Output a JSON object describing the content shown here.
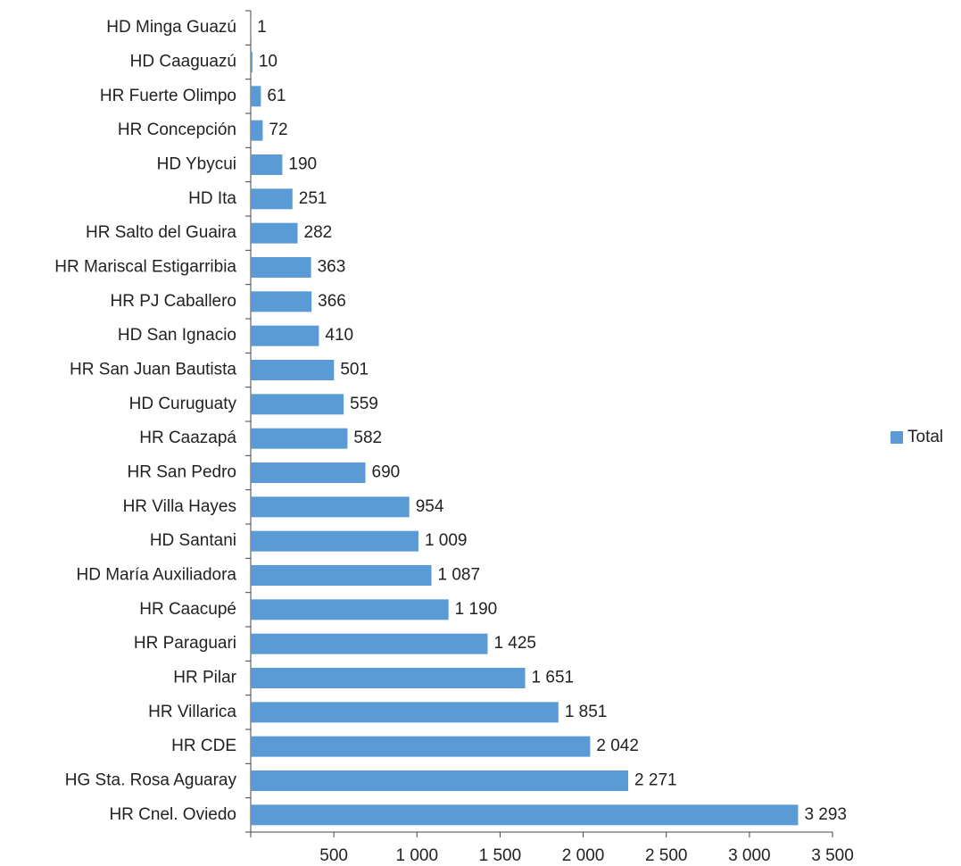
{
  "chart_data": {
    "type": "barh",
    "categories": [
      "HD Minga Guazú",
      "HD Caaguazú",
      "HR Fuerte Olimpo",
      "HR Concepción",
      "HD Ybycui",
      "HD Ita",
      "HR Salto del Guaira",
      "HR Mariscal Estigarribia",
      "HR PJ Caballero",
      "HD San Ignacio",
      "HR San Juan Bautista",
      "HD Curuguaty",
      "HR Caazapá",
      "HR San Pedro",
      "HR Villa Hayes",
      "HD Santani",
      "HD María Auxiliadora",
      "HR Caacupé",
      "HR Paraguari",
      "HR Pilar",
      "HR Villarica",
      "HR CDE",
      "HG Sta. Rosa Aguaray",
      "HR Cnel. Oviedo"
    ],
    "series": [
      {
        "name": "Total",
        "color": "#5b9bd5",
        "values": [
          1,
          10,
          61,
          72,
          190,
          251,
          282,
          363,
          366,
          410,
          501,
          559,
          582,
          690,
          954,
          1009,
          1087,
          1190,
          1425,
          1651,
          1851,
          2042,
          2271,
          3293
        ],
        "value_labels": [
          "1",
          "10",
          "61",
          "72",
          "190",
          "251",
          "282",
          "363",
          "366",
          "410",
          "501",
          "559",
          "582",
          "690",
          "954",
          "1 009",
          "1 087",
          "1 190",
          "1 425",
          "1 651",
          "1 851",
          "2 042",
          "2 271",
          "3 293"
        ]
      }
    ],
    "xlim": [
      0,
      3500
    ],
    "xticks": [
      500,
      {
        "value": 1000,
        "label": "1 000"
      },
      {
        "value": 1500,
        "label": "1 500"
      },
      {
        "value": 2000,
        "label": "2 000"
      },
      {
        "value": 2500,
        "label": "2 500"
      },
      {
        "value": 3000,
        "label": "3 000"
      },
      {
        "value": 3500,
        "label": "3 500"
      }
    ],
    "legend": "right"
  }
}
